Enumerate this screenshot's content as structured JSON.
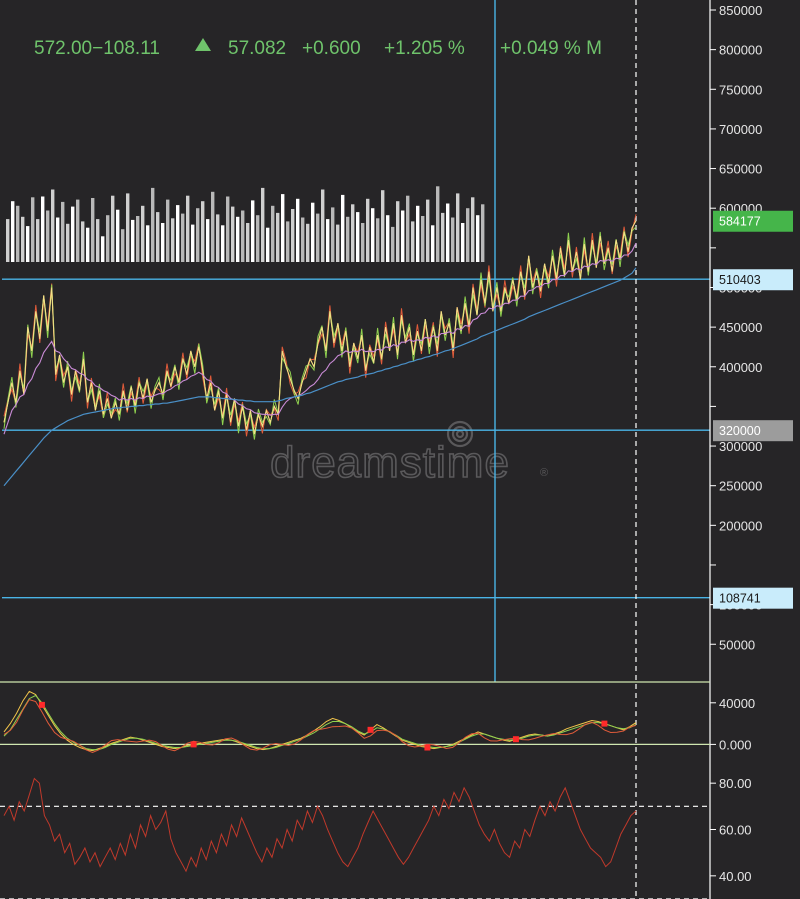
{
  "header": {
    "range": "572.00−108.11",
    "arrow_icon": "triangle-up-icon",
    "last": "57.082",
    "change": "+0.600",
    "change_pct": "+1.205 %",
    "extra": "+0.049 % M"
  },
  "watermark": "dreamstime",
  "colors": {
    "background": "#262527",
    "header": "#6fc36b",
    "hline": "#4ab4e6",
    "badge_green": "#45b54a",
    "badge_blue": "#c9ecfb",
    "badge_gray": "#9c9c9c",
    "osc_line": "#cfe6b0",
    "rsi_line": "#c0392b",
    "marker": "#ff2a2a"
  },
  "chart_data": [
    {
      "type": "line",
      "yticks": [
        850000,
        800000,
        750000,
        700000,
        650000,
        600000,
        550000,
        500000,
        450000,
        400000,
        350000,
        300000,
        250000,
        200000,
        150000,
        100000,
        50000
      ],
      "ytick_labels": [
        "850000",
        "800000",
        "750000",
        "700000",
        "650000",
        "600000",
        "",
        "500000",
        "450000",
        "400000",
        "",
        "300000",
        "250000",
        "200000",
        "",
        "100000",
        "50000"
      ],
      "ylim": [
        15000,
        850000
      ],
      "price_badges": [
        {
          "value": 584177,
          "label": "584177",
          "style": "green"
        },
        {
          "value": 510403,
          "label": "510403",
          "style": "blue"
        },
        {
          "value": 320000,
          "label": "320000",
          "style": "gray"
        },
        {
          "value": 108741,
          "label": "108741",
          "style": "blue"
        }
      ],
      "hlines": [
        510403,
        320000,
        108741
      ],
      "vline_index": 100,
      "price": [
        330000,
        355000,
        380000,
        355000,
        395000,
        365000,
        450000,
        420000,
        470000,
        435000,
        490000,
        445000,
        500000,
        390000,
        415000,
        380000,
        400000,
        365000,
        395000,
        370000,
        410000,
        355000,
        380000,
        345000,
        370000,
        340000,
        360000,
        335000,
        355000,
        340000,
        370000,
        345000,
        375000,
        350000,
        380000,
        360000,
        385000,
        355000,
        370000,
        380000,
        365000,
        395000,
        375000,
        400000,
        380000,
        410000,
        390000,
        420000,
        400000,
        425000,
        395000,
        360000,
        380000,
        345000,
        370000,
        335000,
        365000,
        330000,
        360000,
        325000,
        350000,
        320000,
        345000,
        315000,
        340000,
        325000,
        345000,
        330000,
        350000,
        340000,
        420000,
        400000,
        385000,
        370000,
        360000,
        380000,
        395000,
        410000,
        400000,
        430000,
        450000,
        420000,
        470000,
        430000,
        455000,
        420000,
        445000,
        400000,
        430000,
        410000,
        440000,
        395000,
        425000,
        405000,
        440000,
        410000,
        450000,
        420000,
        455000,
        415000,
        465000,
        430000,
        450000,
        415000,
        445000,
        420000,
        460000,
        425000,
        450000,
        420000,
        470000,
        440000,
        455000,
        420000,
        475000,
        445000,
        480000,
        450000,
        500000,
        465000,
        510000,
        480000,
        520000,
        470000,
        500000,
        470000,
        500000,
        480000,
        510000,
        485000,
        520000,
        490000,
        540000,
        500000,
        520000,
        495000,
        530000,
        505000,
        540000,
        510000,
        550000,
        515000,
        560000,
        520000,
        545000,
        510000,
        555000,
        520000,
        560000,
        525000,
        565000,
        530000,
        550000,
        520000,
        560000,
        535000,
        570000,
        545000,
        575000,
        584177
      ],
      "ma_fast": [
        315000,
        330000,
        345000,
        352000,
        362000,
        365000,
        378000,
        385000,
        398000,
        405000,
        418000,
        425000,
        432000,
        420000,
        418000,
        410000,
        405000,
        398000,
        396000,
        392000,
        390000,
        384000,
        382000,
        376000,
        374000,
        370000,
        368000,
        364000,
        362000,
        358000,
        360000,
        358000,
        360000,
        358000,
        361000,
        360000,
        363000,
        362000,
        364000,
        366000,
        366000,
        370000,
        372000,
        376000,
        378000,
        382000,
        384000,
        388000,
        390000,
        393000,
        390000,
        384000,
        382000,
        376000,
        374000,
        368000,
        366000,
        360000,
        358000,
        353000,
        351000,
        347000,
        346000,
        342000,
        341000,
        340000,
        340000,
        339000,
        340000,
        340000,
        349000,
        356000,
        360000,
        362000,
        363000,
        366000,
        370000,
        375000,
        378000,
        384000,
        392000,
        396000,
        404000,
        408000,
        414000,
        416000,
        420000,
        418000,
        420000,
        419000,
        422000,
        419000,
        420000,
        419000,
        422000,
        421000,
        425000,
        424000,
        428000,
        426000,
        431000,
        431000,
        434000,
        432000,
        434000,
        433000,
        437000,
        436000,
        439000,
        437000,
        442000,
        442000,
        444000,
        442000,
        448000,
        447000,
        452000,
        451000,
        459000,
        461000,
        467000,
        468000,
        474000,
        473000,
        477000,
        476000,
        480000,
        480000,
        484000,
        484000,
        489000,
        489000,
        496000,
        497000,
        501000,
        501000,
        505000,
        505000,
        510000,
        510000,
        515000,
        515000,
        521000,
        520000,
        524000,
        522000,
        527000,
        526000,
        530000,
        529000,
        534000,
        533000,
        535000,
        533000,
        537000,
        536000,
        541000,
        541000,
        546000,
        556000
      ],
      "ma_slow": [
        250000,
        256000,
        262000,
        268000,
        274000,
        280000,
        286000,
        292000,
        298000,
        304000,
        310000,
        315000,
        320000,
        323000,
        326000,
        329000,
        332000,
        334000,
        336000,
        338000,
        340000,
        341000,
        342000,
        343000,
        344000,
        345000,
        346000,
        347000,
        348000,
        348000,
        349000,
        349000,
        350000,
        350000,
        351000,
        351000,
        352000,
        352000,
        353000,
        353000,
        354000,
        354000,
        355000,
        356000,
        357000,
        358000,
        359000,
        360000,
        361000,
        362000,
        362000,
        362000,
        362000,
        361000,
        361000,
        360000,
        360000,
        359000,
        359000,
        358000,
        358000,
        357000,
        357000,
        356000,
        356000,
        356000,
        356000,
        356000,
        356000,
        357000,
        358000,
        360000,
        361000,
        362000,
        363000,
        364000,
        366000,
        367000,
        369000,
        371000,
        373000,
        375000,
        377000,
        379000,
        381000,
        382000,
        384000,
        385000,
        386000,
        387000,
        389000,
        390000,
        391000,
        392000,
        394000,
        395000,
        397000,
        398000,
        400000,
        401000,
        403000,
        404000,
        406000,
        407000,
        409000,
        410000,
        412000,
        413000,
        415000,
        416000,
        418000,
        420000,
        421000,
        423000,
        425000,
        427000,
        429000,
        431000,
        433000,
        435000,
        438000,
        440000,
        442000,
        444000,
        446000,
        448000,
        450000,
        452000,
        454000,
        456000,
        458000,
        460000,
        463000,
        465000,
        467000,
        469000,
        471000,
        473000,
        475000,
        477000,
        479000,
        481000,
        483000,
        485000,
        487000,
        489000,
        491000,
        493000,
        495000,
        497000,
        499000,
        501000,
        503000,
        505000,
        507000,
        509000,
        512000,
        515000,
        518000,
        525000
      ],
      "series": [
        {
          "values": "price"
        },
        {
          "values": "ma_fast"
        },
        {
          "values": "ma_slow"
        }
      ],
      "volume": [
        0.55,
        0.78,
        0.72,
        0.58,
        0.46,
        0.83,
        0.55,
        0.84,
        0.66,
        0.93,
        0.57,
        0.77,
        0.49,
        0.71,
        0.8,
        0.52,
        0.44,
        0.82,
        0.55,
        0.33,
        0.6,
        0.85,
        0.67,
        0.42,
        0.88,
        0.54,
        0.59,
        0.72,
        0.47,
        0.95,
        0.64,
        0.5,
        0.8,
        0.56,
        0.73,
        0.62,
        0.85,
        0.48,
        0.69,
        0.78,
        0.55,
        0.9,
        0.61,
        0.47,
        0.84,
        0.71,
        0.58,
        0.66,
        0.5,
        0.79,
        0.6,
        0.95,
        0.44,
        0.72,
        0.63,
        0.87,
        0.52,
        0.68,
        0.81,
        0.57,
        0.49,
        0.76,
        0.62,
        0.93,
        0.55,
        0.7,
        0.48,
        0.86,
        0.58,
        0.74,
        0.64,
        0.5,
        0.81,
        0.69,
        0.56,
        0.92,
        0.6,
        0.45,
        0.78,
        0.66,
        0.85,
        0.52,
        0.72,
        0.59,
        0.8,
        0.47,
        0.97,
        0.63,
        0.75,
        0.57,
        0.88,
        0.5,
        0.69,
        0.83,
        0.6,
        0.74
      ]
    },
    {
      "type": "line",
      "yticks": [
        40000,
        0
      ],
      "ytick_labels": [
        "40000",
        "0.000"
      ],
      "ylim": [
        -15000,
        60000
      ],
      "markers": [
        6,
        30,
        58,
        67,
        81,
        95
      ],
      "series": [
        {
          "values": [
            12000,
            20000,
            30000,
            42000,
            51000,
            48000,
            38000,
            28000,
            18000,
            10000,
            4000,
            0,
            -3000,
            -5000,
            -6000,
            -4000,
            -2000,
            1000,
            3000,
            5000,
            7000,
            6000,
            4000,
            2000,
            0,
            -2000,
            -3000,
            -4000,
            -3000,
            -1000,
            0,
            1000,
            2000,
            3000,
            4000,
            5000,
            4000,
            2000,
            0,
            -2000,
            -4000,
            -5000,
            -4000,
            -2000,
            0,
            2000,
            4000,
            6000,
            9000,
            13000,
            17000,
            22000,
            25000,
            23000,
            20000,
            16000,
            12000,
            9000,
            14000,
            19000,
            16000,
            12000,
            8000,
            4000,
            2000,
            0,
            -2000,
            -3000,
            -4000,
            -3000,
            -2000,
            0,
            3000,
            6000,
            9000,
            12000,
            10000,
            8000,
            6000,
            4000,
            3000,
            5000,
            7000,
            9000,
            10000,
            9000,
            8000,
            10000,
            12000,
            15000,
            17000,
            19000,
            21000,
            23000,
            22000,
            20000,
            18000,
            16000,
            14000,
            17000,
            21000
          ]
        },
        {
          "values": [
            8000,
            14000,
            24000,
            34000,
            44000,
            47000,
            40000,
            30000,
            20000,
            12000,
            6000,
            2000,
            -1000,
            -4000,
            -5000,
            -5000,
            -3000,
            0,
            2000,
            4000,
            6000,
            6000,
            5000,
            3000,
            1000,
            -1000,
            -2000,
            -3000,
            -3000,
            -2000,
            -1000,
            0,
            1000,
            2000,
            3000,
            4000,
            4000,
            3000,
            1000,
            -1000,
            -3000,
            -4000,
            -4000,
            -3000,
            -1000,
            1000,
            3000,
            5000,
            8000,
            11000,
            15000,
            19000,
            22000,
            22000,
            20000,
            17000,
            13000,
            10000,
            12000,
            16000,
            15000,
            12000,
            9000,
            5000,
            3000,
            1000,
            -1000,
            -2000,
            -3000,
            -3000,
            -2000,
            -1000,
            2000,
            5000,
            8000,
            10000,
            10000,
            8000,
            6000,
            5000,
            4000,
            5000,
            6000,
            8000,
            9000,
            9000,
            8000,
            9000,
            11000,
            13000,
            15000,
            17000,
            19000,
            21000,
            21000,
            20000,
            18000,
            16000,
            15000,
            16000,
            19000
          ]
        }
      ]
    },
    {
      "type": "line",
      "yticks": [
        80,
        60,
        40
      ],
      "ytick_labels": [
        "80.00",
        "60.00",
        "40.00"
      ],
      "ylim": [
        30,
        90
      ],
      "dashed_levels": [
        70,
        30
      ],
      "series": [
        {
          "values": [
            66,
            70,
            64,
            72,
            68,
            75,
            82,
            80,
            66,
            62,
            55,
            58,
            50,
            54,
            45,
            48,
            52,
            46,
            50,
            44,
            48,
            52,
            47,
            54,
            49,
            58,
            52,
            62,
            57,
            66,
            60,
            63,
            68,
            56,
            50,
            46,
            42,
            48,
            44,
            52,
            47,
            55,
            50,
            58,
            53,
            62,
            57,
            65,
            60,
            55,
            50,
            46,
            52,
            48,
            56,
            52,
            60,
            55,
            64,
            60,
            68,
            63,
            70,
            66,
            60,
            55,
            50,
            46,
            44,
            48,
            52,
            58,
            63,
            68,
            64,
            60,
            56,
            52,
            48,
            45,
            48,
            52,
            56,
            60,
            64,
            70,
            66,
            73,
            69,
            76,
            72,
            78,
            74,
            68,
            62,
            58,
            55,
            60,
            54,
            50,
            48,
            55,
            52,
            60,
            57,
            64,
            70,
            66,
            72,
            68,
            74,
            78,
            72,
            66,
            60,
            56,
            52,
            50,
            48,
            44,
            46,
            52,
            58,
            62,
            66,
            68
          ]
        }
      ]
    }
  ]
}
